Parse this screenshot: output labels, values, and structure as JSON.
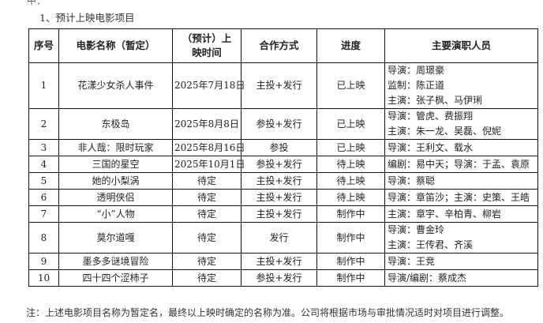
{
  "top_fragment": "中：",
  "heading": "1、预计上映电影项目",
  "table": {
    "headers": [
      "序号",
      "电影名称（暂定）",
      "（预计）上映时间",
      "合作方式",
      "进度",
      "主要演职人员"
    ],
    "rows": [
      {
        "no": "1",
        "title": "花漾少女杀人事件",
        "date": "2025年7月18日",
        "mode": "主投+发行",
        "status": "已上映",
        "staff": [
          "导演：周璟豪",
          "监制：陈正道",
          "主演：张子枫、马伊琍"
        ]
      },
      {
        "no": "2",
        "title": "东极岛",
        "date": "2025年8月8日",
        "mode": "参投+发行",
        "status": "已上映",
        "staff": [
          "导演：管虎、费振翔",
          "主演：朱一龙、吴磊、倪妮"
        ]
      },
      {
        "no": "3",
        "title": "非人哉：限时玩家",
        "date": "2025年8月16日",
        "mode": "参投",
        "status": "已上映",
        "staff": [
          "导演：王利文、载水"
        ]
      },
      {
        "no": "4",
        "title": "三国的星空",
        "date": "2025年10月1日",
        "mode": "参投+发行",
        "status": "待上映",
        "staff": [
          "编剧：易中天；导演：于孟、袁原"
        ]
      },
      {
        "no": "5",
        "title": "她的小梨涡",
        "date": "待定",
        "mode": "主投+发行",
        "status": "待上映",
        "staff": [
          "导演：蔡聪"
        ]
      },
      {
        "no": "6",
        "title": "透明侠侣",
        "date": "待定",
        "mode": "主投+发行",
        "status": "待上映",
        "staff": [
          "导演：章笛沙；主演：史策、王皓"
        ]
      },
      {
        "no": "7",
        "title": "“小”人物",
        "date": "待定",
        "mode": "主投+发行",
        "status": "制作中",
        "staff": [
          "主演：章宇、辛柏青、柳岩"
        ]
      },
      {
        "no": "8",
        "title": "莫尔道嘎",
        "date": "待定",
        "mode": "发行",
        "status": "制作中",
        "staff": [
          "导演：曹金玲",
          "主演：王传君、齐溪"
        ]
      },
      {
        "no": "9",
        "title": "墨多多谜境冒险",
        "date": "待定",
        "mode": "主投+发行",
        "status": "制作中",
        "staff": [
          "导演：王竞"
        ]
      },
      {
        "no": "10",
        "title": "四十四个涩柿子",
        "date": "待定",
        "mode": "参投+发行",
        "status": "制作中",
        "staff": [
          "导演/编剧：蔡成杰"
        ]
      }
    ]
  },
  "note": "注：上述电影项目名称为暂定名，最终以上映时确定的名称为准。公司将根据市场与审批情况适时对项目进行调整。"
}
